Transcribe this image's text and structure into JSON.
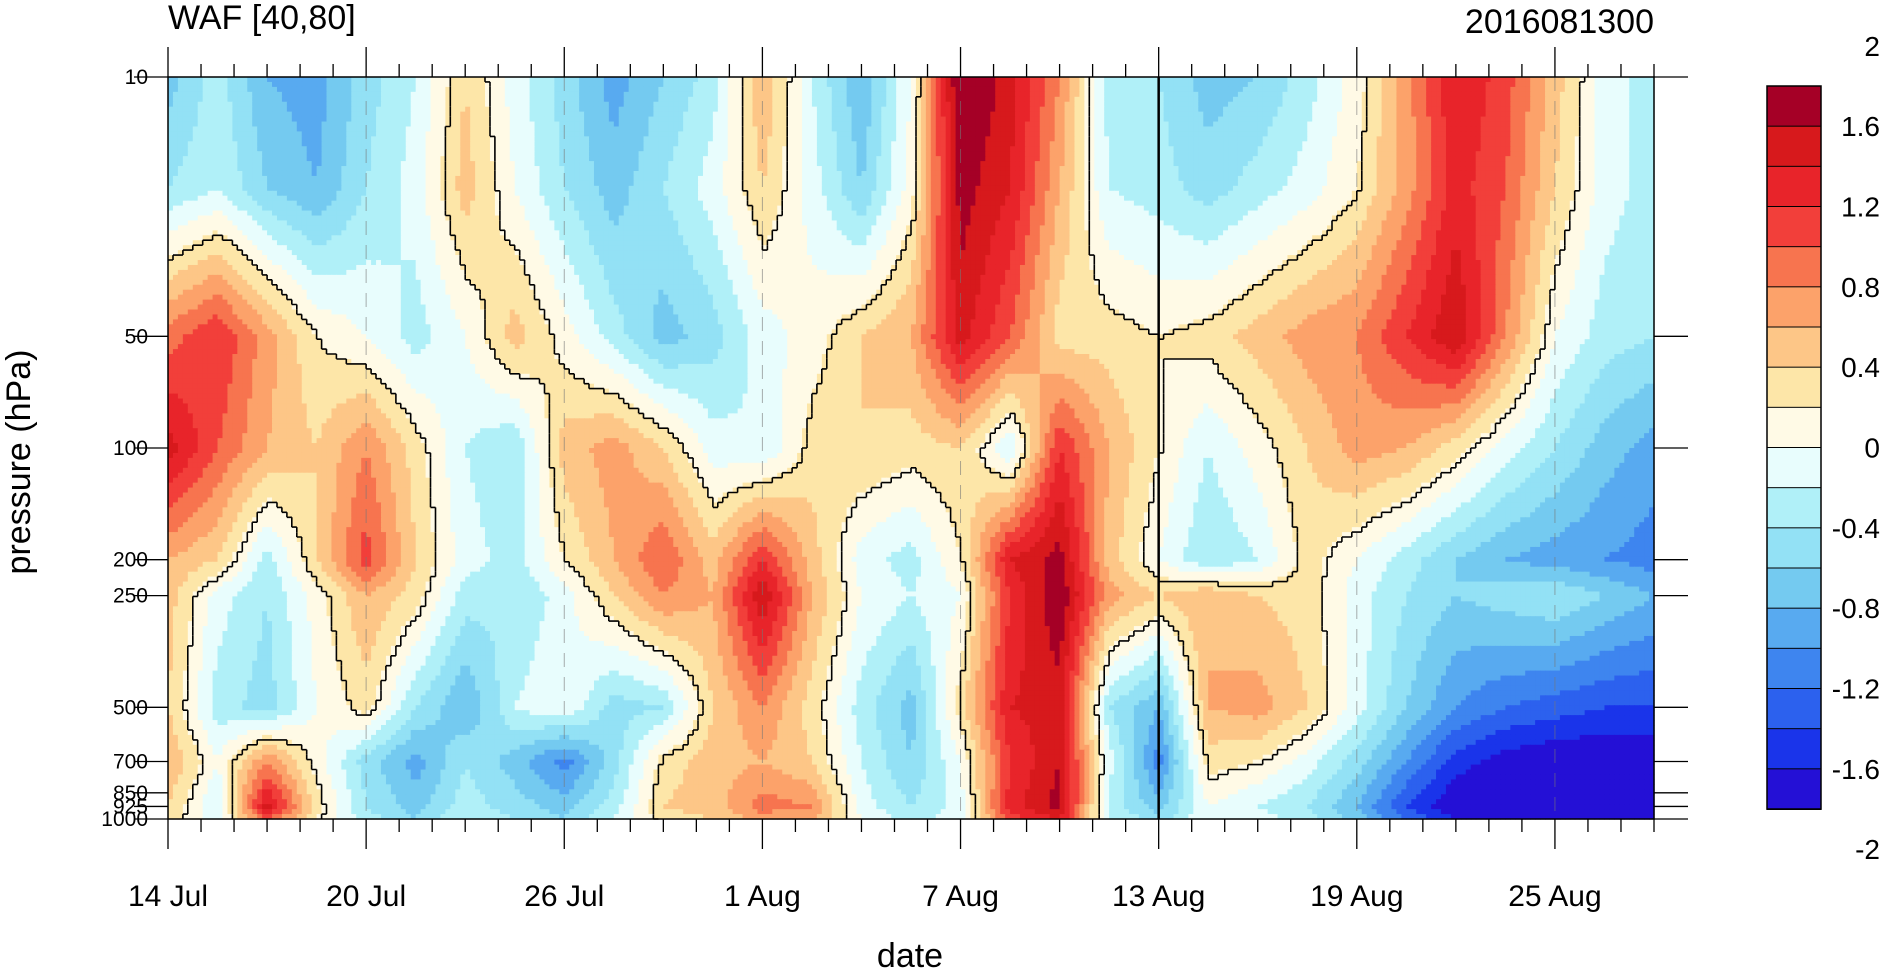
{
  "chart_data": {
    "type": "heatmap",
    "title_left": "WAF [40,80]",
    "title_right": "2016081300",
    "xlabel": "date",
    "ylabel": "pressure (hPa)",
    "x_tick_labels": [
      "14 Jul",
      "20 Jul",
      "26 Jul",
      "1 Aug",
      "7 Aug",
      "13 Aug",
      "19 Aug",
      "25 Aug"
    ],
    "x_tick_days": [
      0,
      6,
      12,
      18,
      24,
      30,
      36,
      42
    ],
    "x_range_days": [
      0,
      45
    ],
    "y_tick_labels": [
      "10",
      "50",
      "100",
      "200",
      "250",
      "500",
      "700",
      "850",
      "925",
      "1000"
    ],
    "y_levels": [
      10,
      50,
      100,
      200,
      250,
      500,
      700,
      850,
      925,
      1000
    ],
    "y_scale": "log",
    "y_inverted": true,
    "marked_date_day": 30,
    "colorbar": {
      "labels": [
        "2",
        "1.6",
        "1.2",
        "0.8",
        "0.4",
        "0",
        "-0.4",
        "-0.8",
        "-1.2",
        "-1.6",
        "-2"
      ],
      "label_values": [
        2,
        1.6,
        1.2,
        0.8,
        0.4,
        0,
        -0.4,
        -0.8,
        -1.2,
        -1.6,
        -2
      ],
      "colors": [
        "#a50026",
        "#d7191c",
        "#e8242a",
        "#f23f3a",
        "#f7744f",
        "#fca26a",
        "#fdc687",
        "#fde6a8",
        "#fffae6",
        "#e8fdfd",
        "#b0f0f8",
        "#93e1f5",
        "#74caf0",
        "#58aaf0",
        "#3e85ef",
        "#2c61ee",
        "#1a34ea",
        "#2410d6"
      ]
    },
    "value_grid": {
      "days": [
        0,
        1.5,
        3,
        4.5,
        6,
        7.5,
        9,
        10.5,
        12,
        13.5,
        15,
        16.5,
        18,
        19.5,
        21,
        22.5,
        24,
        25.5,
        27,
        28.5,
        30,
        31.5,
        33,
        34.5,
        36,
        37.5,
        39,
        40.5,
        42,
        43.5,
        45
      ],
      "levels": [
        10,
        20,
        50,
        100,
        200,
        250,
        500,
        700,
        925,
        1000
      ],
      "values": [
        [
          -0.9,
          -0.5,
          -1.0,
          -1.1,
          -0.7,
          -0.4,
          0.2,
          -0.3,
          -0.7,
          -1.1,
          -0.8,
          -0.5,
          0.4,
          -0.4,
          -1.0,
          -0.2,
          1.7,
          1.3,
          0.6,
          -0.5,
          -0.6,
          -0.9,
          -0.8,
          -0.5,
          -0.1,
          0.5,
          1.2,
          0.9,
          0.3,
          -0.3,
          -0.5
        ],
        [
          -0.6,
          -0.4,
          -0.8,
          -1.0,
          -0.6,
          -0.3,
          0.3,
          -0.2,
          -0.6,
          -0.9,
          -0.6,
          -0.3,
          0.2,
          -0.3,
          -0.8,
          -0.1,
          1.5,
          1.2,
          0.4,
          -0.4,
          -0.5,
          -0.7,
          -0.5,
          -0.3,
          0.0,
          0.5,
          1.1,
          0.8,
          0.2,
          -0.3,
          -0.5
        ],
        [
          0.7,
          1.0,
          0.5,
          0.0,
          -0.2,
          -0.5,
          -0.2,
          0.3,
          -0.1,
          -0.5,
          -0.9,
          -0.7,
          -0.3,
          -0.1,
          0.2,
          0.4,
          1.3,
          0.8,
          0.1,
          0.1,
          0.0,
          0.1,
          0.3,
          0.5,
          0.6,
          1.0,
          1.4,
          0.6,
          -0.2,
          -0.5,
          -0.6
        ],
        [
          1.3,
          0.8,
          0.4,
          0.2,
          0.6,
          0.1,
          -0.4,
          -0.6,
          0.3,
          0.5,
          0.2,
          -0.3,
          -0.4,
          0.1,
          0.2,
          0.1,
          0.2,
          -0.4,
          1.0,
          0.4,
          0.0,
          -0.4,
          -0.1,
          0.2,
          0.5,
          0.4,
          0.1,
          -0.3,
          -0.6,
          -0.9,
          -1.1
        ],
        [
          0.4,
          0.2,
          -0.5,
          0.2,
          0.9,
          0.2,
          -0.3,
          -0.5,
          0.0,
          0.4,
          0.8,
          0.3,
          1.0,
          0.3,
          -0.3,
          -0.5,
          0.0,
          1.2,
          1.5,
          0.3,
          -0.2,
          -0.6,
          -0.4,
          0.1,
          -0.2,
          -0.5,
          -0.8,
          -1.0,
          -1.1,
          -1.2,
          -1.3
        ],
        [
          0.3,
          -0.3,
          -0.6,
          -0.1,
          0.4,
          0.1,
          -0.5,
          -0.6,
          -0.3,
          0.2,
          0.6,
          0.4,
          1.4,
          0.4,
          -0.2,
          -0.4,
          -0.2,
          1.0,
          1.6,
          0.5,
          0.2,
          0.4,
          0.2,
          0.1,
          -0.3,
          -0.6,
          -0.8,
          -0.7,
          -0.6,
          -0.8,
          -1.0
        ],
        [
          0.2,
          -0.5,
          -0.7,
          -0.2,
          0.1,
          -0.6,
          -1.0,
          -0.4,
          -0.2,
          -0.7,
          -0.6,
          0.2,
          0.6,
          0.1,
          -0.5,
          -0.9,
          0.1,
          1.2,
          1.3,
          -0.6,
          -1.0,
          0.4,
          0.5,
          0.2,
          -0.3,
          -0.8,
          -1.2,
          -1.4,
          -1.5,
          -1.6,
          -1.6
        ],
        [
          0.4,
          -0.2,
          0.6,
          -0.1,
          -0.7,
          -1.1,
          -0.6,
          -0.9,
          -1.3,
          -0.7,
          0.1,
          0.3,
          0.4,
          0.2,
          -0.4,
          -0.8,
          -0.2,
          1.0,
          1.4,
          -0.3,
          -1.3,
          0.1,
          0.0,
          -0.3,
          -0.7,
          -1.2,
          -1.7,
          -1.9,
          -2.0,
          -2.0,
          -2.0
        ],
        [
          0.2,
          -0.4,
          1.3,
          0.1,
          -0.6,
          -0.9,
          -0.5,
          -0.7,
          -0.9,
          -0.5,
          0.2,
          0.3,
          0.7,
          0.6,
          -0.3,
          -0.6,
          -0.3,
          1.1,
          1.5,
          -0.5,
          -0.9,
          -0.2,
          -0.4,
          -0.6,
          -1.0,
          -1.6,
          -2.0,
          -2.2,
          -2.3,
          -2.3,
          -2.2
        ],
        [
          0.1,
          -0.3,
          0.8,
          0.0,
          -0.5,
          -0.8,
          -0.4,
          -0.6,
          -0.8,
          -0.4,
          0.1,
          0.2,
          0.5,
          0.4,
          -0.2,
          -0.5,
          -0.3,
          0.9,
          1.2,
          -0.4,
          -0.7,
          -0.2,
          -0.3,
          -0.5,
          -0.9,
          -1.4,
          -1.8,
          -2.0,
          -2.1,
          -2.1,
          -2.0
        ]
      ]
    }
  }
}
